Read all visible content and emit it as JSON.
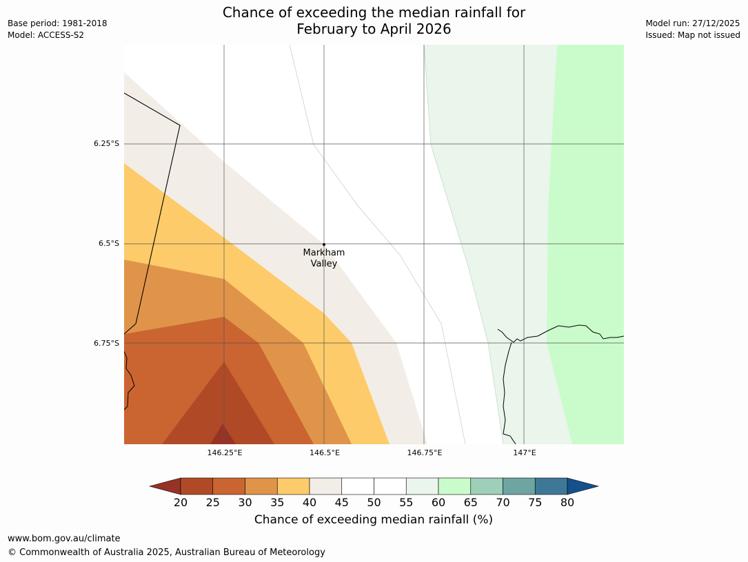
{
  "title": {
    "line1": "Chance of exceeding the median rainfall for",
    "line2": "February to April 2026"
  },
  "meta_left": {
    "base_period": "Base period: 1981-2018",
    "model": "Model: ACCESS-S2"
  },
  "meta_right": {
    "model_run": "Model run: 27/12/2025",
    "issued": "Issued: Map not issued"
  },
  "map": {
    "lat_ticks": [
      "6.25°S",
      "6.5°S",
      "6.75°S"
    ],
    "lon_ticks": [
      "146.25°E",
      "146.5°E",
      "146.75°E",
      "147°E"
    ],
    "place": {
      "name_line1": "Markham",
      "name_line2": "Valley"
    }
  },
  "colorbar": {
    "labels": [
      "20",
      "25",
      "30",
      "35",
      "40",
      "45",
      "50",
      "55",
      "60",
      "65",
      "70",
      "75",
      "80"
    ],
    "title": "Chance of exceeding median rainfall (%)",
    "colors": [
      "#b04a26",
      "#ca6531",
      "#e0944a",
      "#fdcb69",
      "#f2ede7",
      "#ffffff",
      "#ffffff",
      "#eaf5eb",
      "#cafccb",
      "#9ecfb8",
      "#6ea5a2",
      "#3f7897"
    ],
    "extend_low_color": "#963326",
    "extend_high_color": "#16508a"
  },
  "footer": {
    "url": "www.bom.gov.au/climate",
    "copyright": "© Commonwealth of Australia 2025, Australian Bureau of Meteorology"
  }
}
